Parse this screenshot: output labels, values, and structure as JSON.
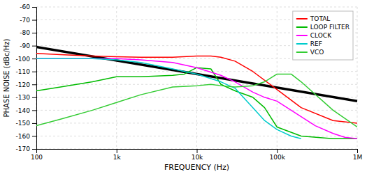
{
  "chart_data": {
    "type": "line",
    "log": "x",
    "grid": true,
    "legend": "upper-right",
    "xlabel": "FREQUENCY (Hz)",
    "ylabel": "PHASE NOISE (dBc/Hz)",
    "xlim": [
      100,
      1000000
    ],
    "xticks": [
      100,
      {
        "value": 1000,
        "label": "1k"
      },
      {
        "value": 10000,
        "label": "10k"
      },
      {
        "value": 100000,
        "label": "100k"
      },
      {
        "value": 1000000,
        "label": "1M"
      }
    ],
    "ylim": [
      -170,
      -60
    ],
    "yticks": [
      -170,
      -160,
      -150,
      -140,
      -130,
      -120,
      -110,
      -100,
      -90,
      -80,
      -70,
      -60
    ],
    "series": [
      {
        "color": "#000000",
        "x": [
          100,
          1000000
        ],
        "values": [
          -91,
          -133
        ]
      },
      {
        "name": "TOTAL",
        "color": "#ff0000",
        "x": [
          100,
          200,
          500,
          1000,
          2000,
          5000,
          10000,
          15000,
          20000,
          30000,
          50000,
          100000,
          200000,
          500000,
          1000000
        ],
        "values": [
          -96,
          -97,
          -98,
          -98.5,
          -99,
          -99,
          -98,
          -98,
          -99,
          -102,
          -110,
          -124,
          -138,
          -148,
          -150
        ]
      },
      {
        "name": "LOOP FILTER",
        "color": "#00bb00",
        "x": [
          100,
          200,
          500,
          1000,
          2000,
          5000,
          7000,
          10000,
          15000,
          20000,
          30000,
          50000,
          70000,
          100000,
          200000,
          500000,
          1000000
        ],
        "values": [
          -125,
          -122,
          -118,
          -114,
          -114,
          -113,
          -112,
          -107,
          -108,
          -120,
          -125,
          -130,
          -138,
          -153,
          -160,
          -162,
          -162
        ]
      },
      {
        "name": "CLOCK",
        "color": "#ff00ff",
        "x": [
          100,
          200,
          500,
          1000,
          2000,
          5000,
          10000,
          20000,
          30000,
          50000,
          70000,
          100000,
          200000,
          300000,
          500000,
          700000,
          1000000
        ],
        "values": [
          -100,
          -100,
          -100,
          -100,
          -101,
          -103,
          -107,
          -113,
          -118,
          -126,
          -130,
          -133,
          -145,
          -152,
          -158,
          -161,
          -162
        ]
      },
      {
        "name": "REF",
        "color": "#00cccc",
        "x": [
          100,
          200,
          500,
          1000,
          2000,
          5000,
          10000,
          20000,
          30000,
          50000,
          70000,
          100000,
          150000,
          200000
        ],
        "values": [
          -100,
          -100,
          -100,
          -101,
          -103,
          -108,
          -112,
          -118,
          -123,
          -138,
          -148,
          -155,
          -160,
          -162
        ]
      },
      {
        "name": "VCO",
        "color": "#33cc33",
        "x": [
          100,
          200,
          500,
          1000,
          2000,
          5000,
          10000,
          15000,
          20000,
          30000,
          50000,
          70000,
          100000,
          150000,
          200000,
          500000,
          1000000
        ],
        "values": [
          -152,
          -147,
          -140,
          -134,
          -128,
          -122,
          -121,
          -120,
          -121,
          -122,
          -121,
          -118,
          -112,
          -112,
          -118,
          -140,
          -153
        ]
      }
    ]
  }
}
